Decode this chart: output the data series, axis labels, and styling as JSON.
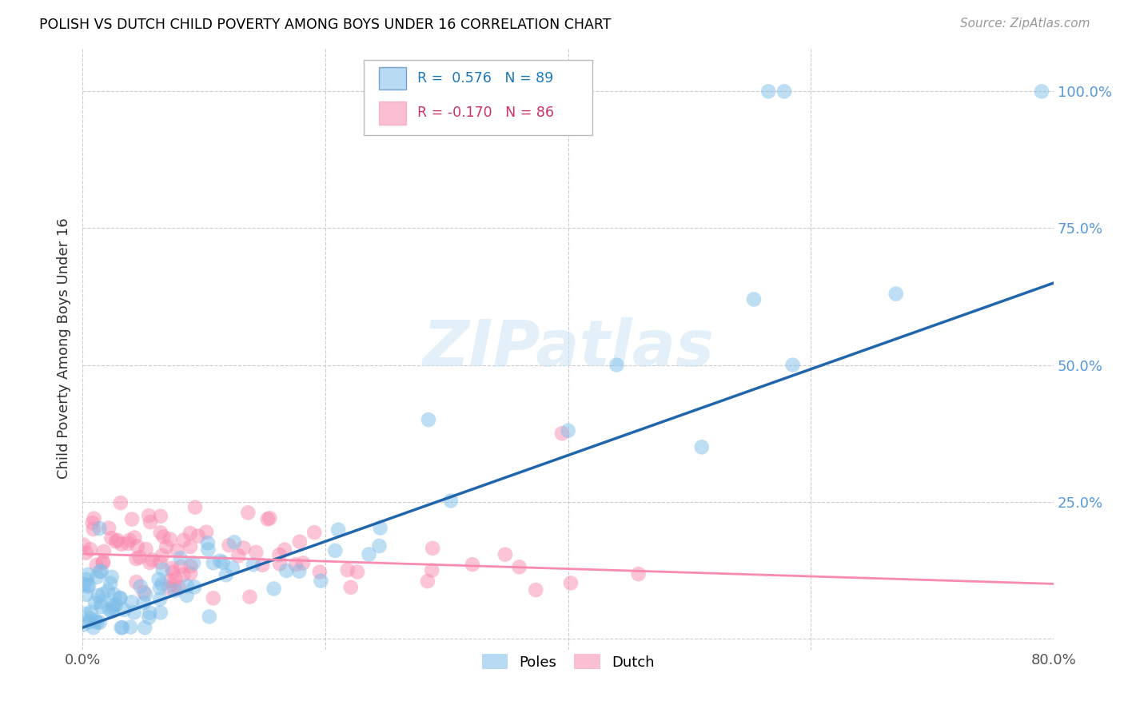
{
  "title": "POLISH VS DUTCH CHILD POVERTY AMONG BOYS UNDER 16 CORRELATION CHART",
  "source": "Source: ZipAtlas.com",
  "ylabel": "Child Poverty Among Boys Under 16",
  "legend_labels": [
    "Poles",
    "Dutch"
  ],
  "poles_color": "#7fbfea",
  "dutch_color": "#f98bb0",
  "poles_line_color": "#2166ac",
  "dutch_line_color": "#f98bb0",
  "R_poles": 0.576,
  "N_poles": 89,
  "R_dutch": -0.17,
  "N_dutch": 86,
  "watermark": "ZIPatlas",
  "xlim": [
    0.0,
    0.8
  ],
  "ylim": [
    -0.02,
    1.08
  ],
  "x_ticks": [
    0.0,
    0.2,
    0.4,
    0.6,
    0.8
  ],
  "x_tick_labels": [
    "0.0%",
    "",
    "",
    "",
    "80.0%"
  ],
  "y_ticks": [
    0.0,
    0.25,
    0.5,
    0.75,
    1.0
  ],
  "y_tick_labels": [
    "",
    "25.0%",
    "50.0%",
    "75.0%",
    "100.0%"
  ],
  "poles_line_start_y": 0.02,
  "poles_line_end_y": 0.65,
  "dutch_line_start_y": 0.155,
  "dutch_line_end_y": 0.1
}
